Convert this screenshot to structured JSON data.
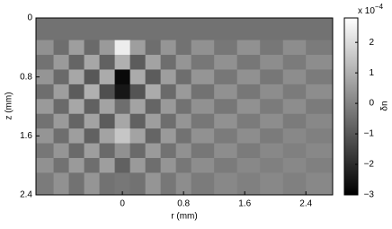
{
  "chart_data": {
    "type": "heatmap",
    "xlabel": "r (mm)",
    "ylabel": "z (mm)",
    "x_edges": [
      -1.13,
      -0.9,
      -0.7,
      -0.5,
      -0.3,
      -0.1,
      0.1,
      0.3,
      0.5,
      0.7,
      0.9,
      1.2,
      1.5,
      1.8,
      2.1,
      2.4,
      2.75
    ],
    "y_edges": [
      0,
      0.3,
      0.5,
      0.7,
      0.9,
      1.1,
      1.3,
      1.5,
      1.7,
      1.9,
      2.1,
      2.4
    ],
    "z": [
      [
        -0.4,
        -0.4,
        -0.4,
        -0.4,
        -0.4,
        -0.4,
        -0.4,
        -0.4,
        -0.4,
        -0.4,
        -0.4,
        -0.4,
        -0.4,
        -0.4,
        -0.4,
        -0.4
      ],
      [
        0.3,
        -0.5,
        0.6,
        -0.6,
        0.5,
        2.4,
        0.6,
        -0.5,
        0.4,
        -0.4,
        0.3,
        -0.3,
        0.3,
        -0.3,
        0.2,
        -0.2
      ],
      [
        -0.4,
        0.5,
        -0.7,
        0.8,
        -0.8,
        1.0,
        -0.9,
        0.7,
        -0.5,
        0.4,
        -0.3,
        0.3,
        -0.3,
        0.2,
        -0.2,
        0.2
      ],
      [
        0.4,
        -0.6,
        0.8,
        -1.0,
        0.9,
        -2.8,
        0.9,
        -0.9,
        0.6,
        -0.5,
        0.4,
        -0.3,
        0.3,
        -0.3,
        0.2,
        -0.2
      ],
      [
        -0.5,
        0.6,
        -0.9,
        1.0,
        -1.2,
        -2.5,
        -1.1,
        0.9,
        -0.6,
        0.5,
        -0.4,
        0.3,
        -0.3,
        0.2,
        -0.2,
        0.2
      ],
      [
        0.5,
        -0.6,
        0.8,
        -0.8,
        0.7,
        -0.5,
        0.7,
        -0.7,
        0.5,
        -0.4,
        0.3,
        -0.3,
        0.3,
        -0.2,
        0.2,
        -0.2
      ],
      [
        -0.4,
        0.5,
        -0.7,
        0.7,
        -0.9,
        0.8,
        -0.8,
        0.6,
        -0.5,
        0.4,
        -0.3,
        0.3,
        -0.2,
        0.2,
        -0.2,
        0.1
      ],
      [
        0.4,
        -0.5,
        0.6,
        -0.8,
        0.7,
        1.5,
        0.7,
        -0.7,
        0.5,
        -0.4,
        0.3,
        -0.2,
        0.2,
        -0.2,
        0.1,
        -0.1
      ],
      [
        -0.3,
        0.4,
        -0.6,
        0.6,
        -0.6,
        0.3,
        -0.6,
        0.5,
        -0.4,
        0.3,
        -0.3,
        0.2,
        -0.2,
        0.1,
        -0.1,
        0.1
      ],
      [
        0.3,
        -0.4,
        0.5,
        -0.5,
        0.6,
        -0.8,
        0.5,
        -0.5,
        0.4,
        -0.3,
        0.2,
        -0.2,
        0.1,
        -0.1,
        0.1,
        -0.1
      ],
      [
        -0.2,
        0.3,
        -0.4,
        0.4,
        -0.4,
        -0.3,
        -0.4,
        0.4,
        -0.3,
        0.2,
        -0.2,
        0.1,
        -0.1,
        0.1,
        -0.1,
        0.1
      ]
    ],
    "xlim": [
      -1.13,
      2.75
    ],
    "xticks": [
      0,
      0.8,
      1.6,
      2.4
    ],
    "ylim": [
      0,
      2.4
    ],
    "yticks": [
      0,
      0.8,
      1.6,
      2.4
    ],
    "y_inverted": true,
    "colormap": [
      "#000000",
      "#ffffff"
    ],
    "colorbar_label": "δn",
    "colorbar_scale": "x 10",
    "colorbar_scale_exp": "−4",
    "clim": [
      -3,
      2.8
    ],
    "cticks": [
      {
        "value": -3,
        "label": "−3"
      },
      {
        "value": -2,
        "label": "−2"
      },
      {
        "value": -1,
        "label": "−1"
      },
      0,
      1,
      2
    ]
  }
}
